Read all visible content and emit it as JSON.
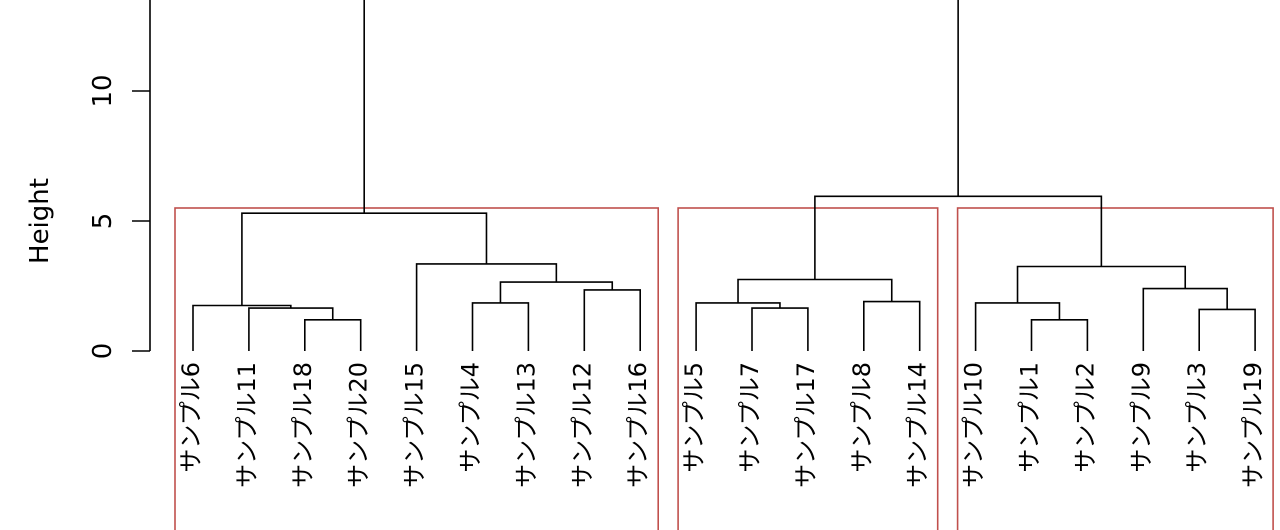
{
  "chart_data": {
    "type": "dendrogram",
    "ylabel": "Height",
    "yticks": [
      0,
      5,
      10
    ],
    "ylim": [
      0,
      13.5
    ],
    "leaves": [
      "サンプル6",
      "サンプル11",
      "サンプル18",
      "サンプル20",
      "サンプル15",
      "サンプル4",
      "サンプル13",
      "サンプル12",
      "サンプル16",
      "サンプル5",
      "サンプル7",
      "サンプル17",
      "サンプル8",
      "サンプル14",
      "サンプル10",
      "サンプル1",
      "サンプル2",
      "サンプル9",
      "サンプル3",
      "サンプル19"
    ],
    "merges": [
      {
        "id": "m1",
        "left": 2,
        "right": 3,
        "height": 1.2
      },
      {
        "id": "m2",
        "left": 1,
        "right": "m1",
        "height": 1.65
      },
      {
        "id": "m3",
        "left": 0,
        "right": "m2",
        "height": 1.75
      },
      {
        "id": "m4",
        "left": 5,
        "right": 6,
        "height": 1.85
      },
      {
        "id": "m5",
        "left": 7,
        "right": 8,
        "height": 2.35
      },
      {
        "id": "m6",
        "left": "m4",
        "right": "m5",
        "height": 2.65
      },
      {
        "id": "m7",
        "left": 4,
        "right": "m6",
        "height": 3.35
      },
      {
        "id": "m8",
        "left": "m3",
        "right": "m7",
        "height": 5.3
      },
      {
        "id": "m9",
        "left": 11,
        "right": 10,
        "height": 1.65
      },
      {
        "id": "m10",
        "left": 9,
        "right": "m9",
        "height": 1.85
      },
      {
        "id": "m11",
        "left": 12,
        "right": 13,
        "height": 1.9
      },
      {
        "id": "m12",
        "left": "m10",
        "right": "m11",
        "height": 2.75
      },
      {
        "id": "m13",
        "left": 15,
        "right": 16,
        "height": 1.2
      },
      {
        "id": "m14",
        "left": 14,
        "right": "m13",
        "height": 1.85
      },
      {
        "id": "m15",
        "left": 18,
        "right": 19,
        "height": 1.6
      },
      {
        "id": "m16",
        "left": 17,
        "right": "m15",
        "height": 2.4
      },
      {
        "id": "m17",
        "left": "m14",
        "right": "m16",
        "height": 3.25
      },
      {
        "id": "m18",
        "left": "m12",
        "right": "m17",
        "height": 5.95
      },
      {
        "id": "m19",
        "left": "m8",
        "right": "m18",
        "height": 14.5
      }
    ],
    "clusters": [
      {
        "first": 0,
        "last": 8
      },
      {
        "first": 9,
        "last": 13
      },
      {
        "first": 14,
        "last": 19
      }
    ],
    "cluster_box_color": "#c0504d"
  }
}
